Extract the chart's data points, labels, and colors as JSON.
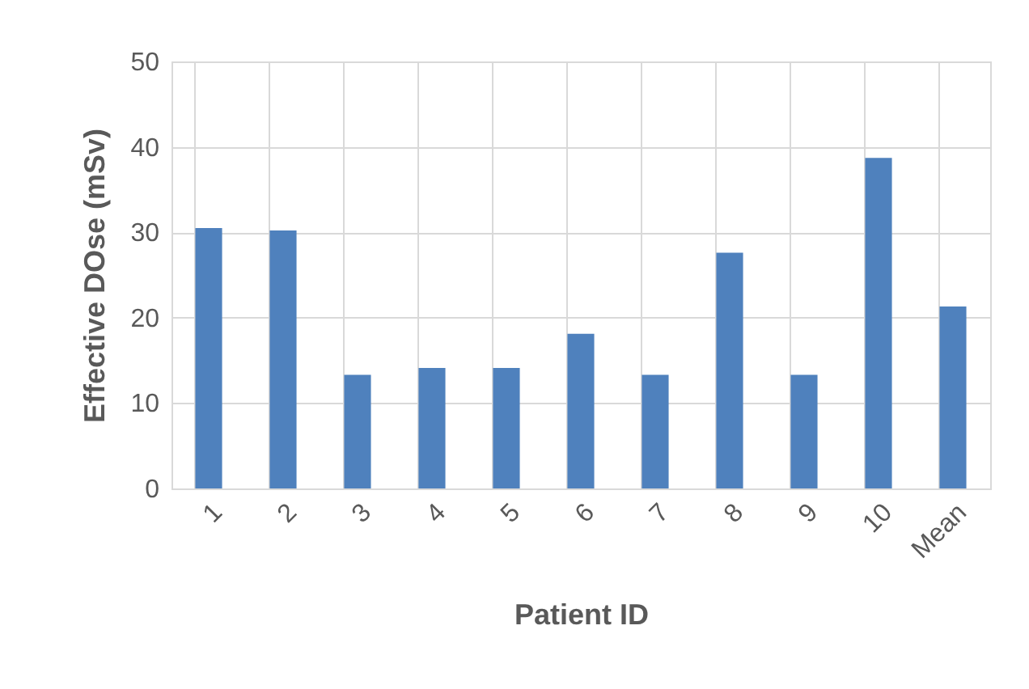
{
  "chart_data": {
    "type": "bar",
    "xlabel": "Patient ID",
    "ylabel": "Effective DOse (mSv)",
    "categories": [
      "1",
      "2",
      "3",
      "4",
      "5",
      "6",
      "7",
      "8",
      "9",
      "10",
      "Mean"
    ],
    "values": [
      30.5,
      30.2,
      13.3,
      14.1,
      14.1,
      18.1,
      13.3,
      27.6,
      13.3,
      38.7,
      21.3
    ],
    "color": "#4f81bd",
    "ylim": [
      0,
      50
    ],
    "yticks": [
      0,
      10,
      20,
      30,
      40,
      50
    ],
    "grid": true
  }
}
